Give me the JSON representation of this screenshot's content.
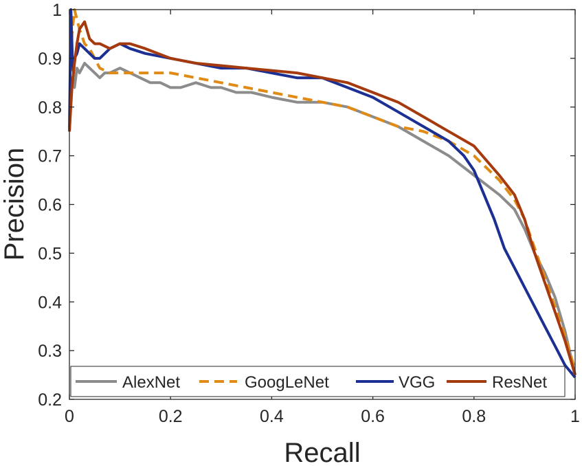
{
  "chart_data": {
    "type": "line",
    "title": "",
    "xlabel": "Recall",
    "ylabel": "Precision",
    "xlim": [
      0,
      1
    ],
    "ylim": [
      0.2,
      1
    ],
    "xticks": [
      0,
      0.2,
      0.4,
      0.6,
      0.8,
      1
    ],
    "xtick_labels": [
      "0",
      "0.2",
      "0.4",
      "0.6",
      "0.8",
      "1"
    ],
    "yticks": [
      0.2,
      0.3,
      0.4,
      0.5,
      0.6,
      0.7,
      0.8,
      0.9,
      1
    ],
    "ytick_labels": [
      "0.2",
      "0.3",
      "0.4",
      "0.5",
      "0.6",
      "0.7",
      "0.8",
      "0.9",
      "1"
    ],
    "grid": false,
    "legend_position": "bottom",
    "series": [
      {
        "name": "AlexNet",
        "color": "#8c8c8c",
        "dash": "solid",
        "x": [
          0,
          0.005,
          0.01,
          0.015,
          0.02,
          0.03,
          0.04,
          0.05,
          0.06,
          0.07,
          0.08,
          0.1,
          0.12,
          0.14,
          0.16,
          0.18,
          0.2,
          0.22,
          0.25,
          0.28,
          0.3,
          0.33,
          0.36,
          0.4,
          0.45,
          0.5,
          0.55,
          0.6,
          0.65,
          0.7,
          0.75,
          0.8,
          0.85,
          0.88,
          0.9,
          0.92,
          0.94,
          0.96,
          0.98,
          1
        ],
        "values": [
          0.75,
          0.86,
          0.84,
          0.88,
          0.87,
          0.89,
          0.88,
          0.87,
          0.86,
          0.87,
          0.87,
          0.88,
          0.87,
          0.86,
          0.85,
          0.85,
          0.84,
          0.84,
          0.85,
          0.84,
          0.84,
          0.83,
          0.83,
          0.82,
          0.81,
          0.81,
          0.8,
          0.78,
          0.76,
          0.73,
          0.7,
          0.66,
          0.62,
          0.59,
          0.55,
          0.5,
          0.46,
          0.41,
          0.34,
          0.25
        ]
      },
      {
        "name": "GoogLeNet",
        "color": "#e08b16",
        "dash": "dashed",
        "x": [
          0,
          0.005,
          0.01,
          0.015,
          0.02,
          0.03,
          0.04,
          0.05,
          0.06,
          0.08,
          0.1,
          0.12,
          0.15,
          0.2,
          0.25,
          0.3,
          0.35,
          0.4,
          0.45,
          0.5,
          0.55,
          0.6,
          0.65,
          0.7,
          0.75,
          0.8,
          0.85,
          0.88,
          0.9,
          0.92,
          0.94,
          0.96,
          0.98,
          1
        ],
        "values": [
          0.75,
          0.95,
          1,
          0.98,
          0.96,
          0.93,
          0.92,
          0.9,
          0.88,
          0.87,
          0.87,
          0.87,
          0.87,
          0.87,
          0.86,
          0.85,
          0.84,
          0.83,
          0.82,
          0.81,
          0.8,
          0.78,
          0.76,
          0.75,
          0.73,
          0.7,
          0.65,
          0.61,
          0.57,
          0.51,
          0.45,
          0.39,
          0.33,
          0.26
        ]
      },
      {
        "name": "VGG",
        "color": "#1c2f92",
        "dash": "solid",
        "x": [
          0,
          0.003,
          0.006,
          0.008,
          0.01,
          0.015,
          0.02,
          0.03,
          0.04,
          0.05,
          0.06,
          0.08,
          0.1,
          0.12,
          0.15,
          0.2,
          0.25,
          0.3,
          0.35,
          0.4,
          0.45,
          0.5,
          0.55,
          0.6,
          0.65,
          0.7,
          0.75,
          0.78,
          0.8,
          0.82,
          0.84,
          0.86,
          0.88,
          0.9,
          0.92,
          0.94,
          0.96,
          0.98,
          1
        ],
        "values": [
          0.75,
          1,
          0.9,
          0.87,
          0.9,
          0.91,
          0.93,
          0.92,
          0.91,
          0.9,
          0.9,
          0.92,
          0.93,
          0.92,
          0.91,
          0.9,
          0.89,
          0.88,
          0.88,
          0.87,
          0.86,
          0.86,
          0.84,
          0.82,
          0.79,
          0.76,
          0.73,
          0.7,
          0.67,
          0.62,
          0.57,
          0.51,
          0.47,
          0.43,
          0.39,
          0.35,
          0.31,
          0.27,
          0.245
        ]
      },
      {
        "name": "ResNet",
        "color": "#a63a0f",
        "dash": "solid",
        "x": [
          0,
          0.005,
          0.01,
          0.015,
          0.02,
          0.03,
          0.04,
          0.05,
          0.06,
          0.08,
          0.1,
          0.12,
          0.15,
          0.2,
          0.25,
          0.3,
          0.35,
          0.4,
          0.45,
          0.5,
          0.55,
          0.6,
          0.65,
          0.7,
          0.75,
          0.8,
          0.85,
          0.88,
          0.9,
          0.92,
          0.94,
          0.96,
          0.98,
          1
        ],
        "values": [
          0.75,
          0.84,
          0.89,
          0.93,
          0.96,
          0.975,
          0.94,
          0.93,
          0.93,
          0.92,
          0.93,
          0.93,
          0.92,
          0.9,
          0.89,
          0.885,
          0.88,
          0.875,
          0.87,
          0.86,
          0.85,
          0.83,
          0.81,
          0.78,
          0.75,
          0.72,
          0.66,
          0.62,
          0.57,
          0.5,
          0.44,
          0.38,
          0.32,
          0.25
        ]
      }
    ]
  }
}
